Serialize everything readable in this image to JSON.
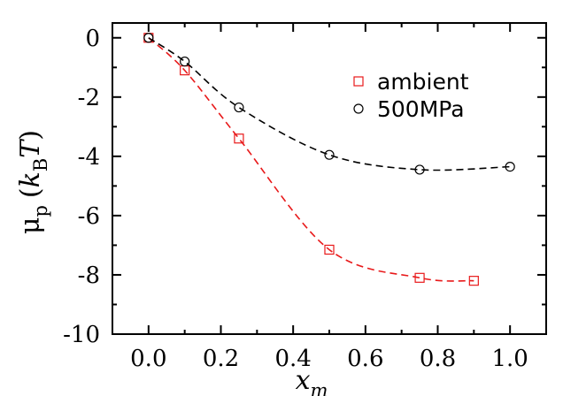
{
  "chart_data": {
    "type": "line",
    "title": "",
    "xlabel": {
      "main": "x",
      "sub": "m"
    },
    "ylabel": {
      "greek": "μ",
      "sub": "p",
      "open": "(",
      "k": "k",
      "ksub": "B",
      "t": "T",
      "close": ")"
    },
    "xlim": [
      -0.1,
      1.1
    ],
    "ylim": [
      -10,
      0.5
    ],
    "xticks": [
      0.0,
      0.2,
      0.4,
      0.6,
      0.8,
      1.0
    ],
    "xtick_labels": [
      "0.0",
      "0.2",
      "0.4",
      "0.6",
      "0.8",
      "1.0"
    ],
    "yticks": [
      0,
      -2,
      -4,
      -6,
      -8,
      -10
    ],
    "ytick_labels": [
      "0",
      "-2",
      "-4",
      "-6",
      "-8",
      "-10"
    ],
    "grid": false,
    "legend_position": "top-right",
    "series": [
      {
        "name": "ambient",
        "color": "#e8191a",
        "marker": "square",
        "line": "dashed",
        "x": [
          0.0,
          0.1,
          0.25,
          0.5,
          0.75,
          0.9
        ],
        "y": [
          0.0,
          -1.1,
          -3.4,
          -7.15,
          -8.1,
          -8.2
        ]
      },
      {
        "name": "500MPa",
        "color": "#000000",
        "marker": "circle",
        "line": "dashed",
        "x": [
          0.0,
          0.1,
          0.25,
          0.5,
          0.75,
          1.0
        ],
        "y": [
          0.0,
          -0.8,
          -2.35,
          -3.95,
          -4.45,
          -4.35
        ]
      }
    ]
  }
}
